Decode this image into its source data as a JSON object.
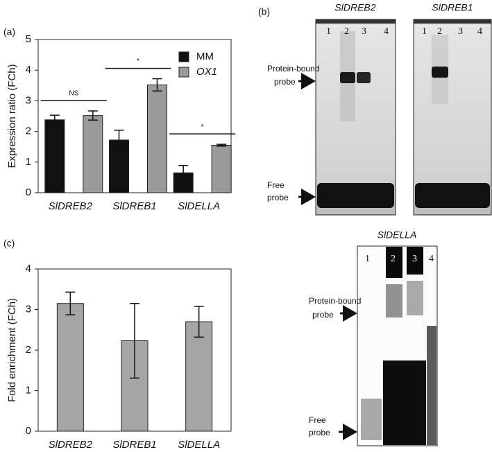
{
  "chart_data": [
    {
      "type": "bar",
      "panel_label": "(a)",
      "ylabel": "Expression ratio (FCh)",
      "categories": [
        "SlDREB2",
        "SlDREB1",
        "SlDELLA"
      ],
      "series": [
        {
          "name": "MM",
          "color": "#111111",
          "values": [
            2.38,
            1.72,
            0.65
          ],
          "errors": [
            0.15,
            0.32,
            0.24
          ]
        },
        {
          "name": "OX1",
          "color": "#9a9a9a",
          "values": [
            2.52,
            3.52,
            1.55
          ],
          "errors": [
            0.15,
            0.2,
            0.03
          ]
        }
      ],
      "annotations": [
        "NS",
        "*",
        "*"
      ],
      "ylim": [
        0,
        5
      ],
      "yticks": [
        0,
        1,
        2,
        3,
        4,
        5
      ],
      "legend": "upper right"
    },
    {
      "type": "bar",
      "panel_label": "(c)",
      "ylabel": "Fold enrichment (FCh)",
      "categories": [
        "SlDREB2",
        "SlDREB1",
        "SlDELLA"
      ],
      "values": [
        3.15,
        2.23,
        2.7
      ],
      "errors": [
        0.28,
        0.92,
        0.38
      ],
      "color": "#a6a6a6",
      "ylim": [
        0,
        4
      ],
      "yticks": [
        0,
        1,
        2,
        3,
        4
      ]
    }
  ],
  "gels": {
    "panel_label": "(b)",
    "blots": [
      {
        "title": "SlDREB2",
        "lanes": [
          "1",
          "2",
          "3",
          "4"
        ],
        "bound_label": [
          "Protein-bound",
          "probe"
        ],
        "free_label": [
          "Free",
          "probe"
        ]
      },
      {
        "title": "SlDREB1",
        "lanes": [
          "1",
          "2",
          "3",
          "4"
        ]
      },
      {
        "title": "SlDELLA",
        "lanes": [
          "1",
          "2",
          "3",
          "4"
        ],
        "bound_label": [
          "Protein-bound",
          "probe"
        ],
        "free_label": [
          "Free",
          "probe"
        ]
      }
    ]
  }
}
